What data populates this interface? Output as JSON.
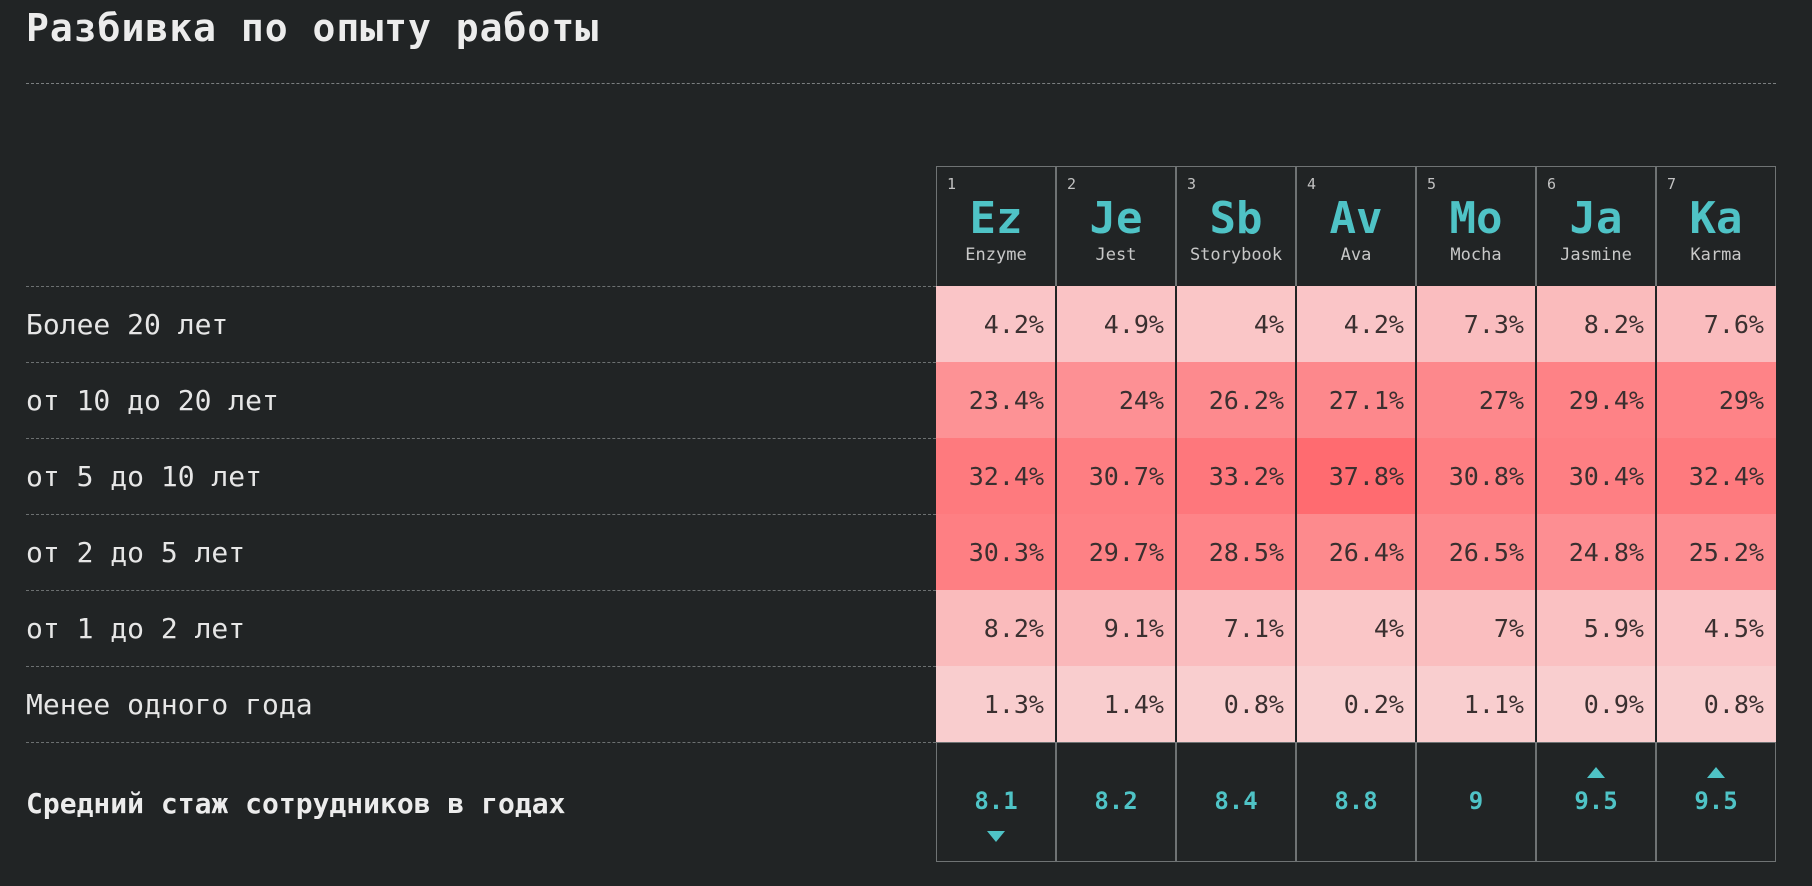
{
  "title": "Разбивка по опыту работы",
  "colors": {
    "background": "#212425",
    "accent": "#4fc3c6",
    "heat_low": "#f9d0d1",
    "heat_high": "#ff6b70"
  },
  "chart_data": {
    "type": "heatmap",
    "title": "Разбивка по опыту работы",
    "columns": [
      {
        "number": "1",
        "symbol": "Ez",
        "name": "Enzyme"
      },
      {
        "number": "2",
        "symbol": "Je",
        "name": "Jest"
      },
      {
        "number": "3",
        "symbol": "Sb",
        "name": "Storybook"
      },
      {
        "number": "4",
        "symbol": "Av",
        "name": "Ava"
      },
      {
        "number": "5",
        "symbol": "Mo",
        "name": "Mocha"
      },
      {
        "number": "6",
        "symbol": "Ja",
        "name": "Jasmine"
      },
      {
        "number": "7",
        "symbol": "Ka",
        "name": "Karma"
      }
    ],
    "rows": [
      {
        "label": "Более 20 лет",
        "values": [
          "4.2%",
          "4.9%",
          "4%",
          "4.2%",
          "7.3%",
          "8.2%",
          "7.6%"
        ]
      },
      {
        "label": "от 10 до 20 лет",
        "values": [
          "23.4%",
          "24%",
          "26.2%",
          "27.1%",
          "27%",
          "29.4%",
          "29%"
        ]
      },
      {
        "label": "от 5 до 10 лет",
        "values": [
          "32.4%",
          "30.7%",
          "33.2%",
          "37.8%",
          "30.8%",
          "30.4%",
          "32.4%"
        ]
      },
      {
        "label": "от 2 до 5 лет",
        "values": [
          "30.3%",
          "29.7%",
          "28.5%",
          "26.4%",
          "26.5%",
          "24.8%",
          "25.2%"
        ]
      },
      {
        "label": "от 1 до 2 лет",
        "values": [
          "8.2%",
          "9.1%",
          "7.1%",
          "4%",
          "7%",
          "5.9%",
          "4.5%"
        ]
      },
      {
        "label": "Менее одного года",
        "values": [
          "1.3%",
          "1.4%",
          "0.8%",
          "0.2%",
          "1.1%",
          "0.9%",
          "0.8%"
        ]
      }
    ],
    "average": {
      "label": "Средний стаж сотрудников в годах",
      "values": [
        "8.1",
        "8.2",
        "8.4",
        "8.8",
        "9",
        "9.5",
        "9.5"
      ],
      "markers": [
        "min",
        "",
        "",
        "",
        "",
        "max",
        "max"
      ]
    }
  }
}
